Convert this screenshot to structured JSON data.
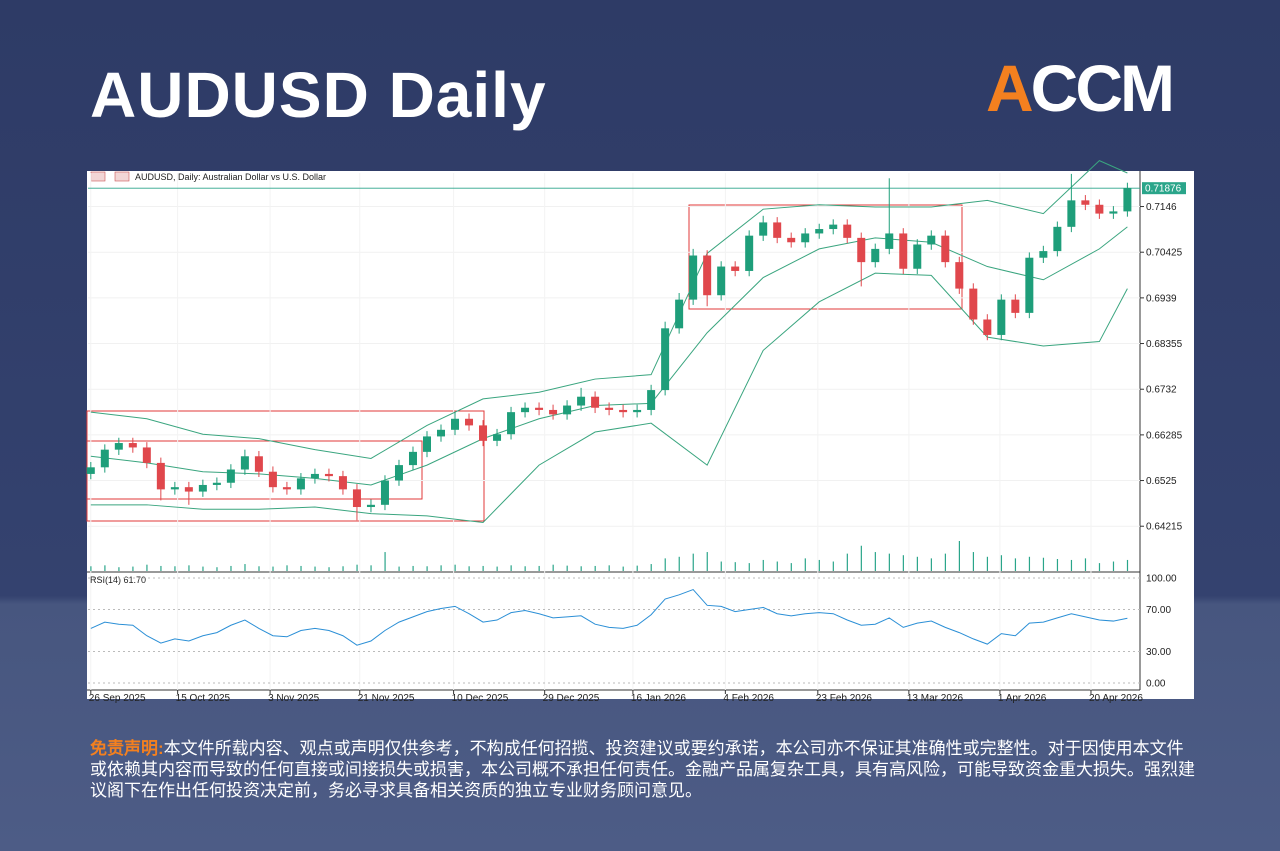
{
  "header": {
    "title": "AUDUSD Daily",
    "logo": "ACCM"
  },
  "chart_data": {
    "type": "candlestick",
    "caption": "AUDUSD, Daily: Australian Dollar vs U.S. Dollar",
    "up_color": "#1e9e7a",
    "down_color": "#e0474c",
    "xlim": [
      -0.2,
      74.9
    ],
    "xticks": [
      {
        "value": 0,
        "label": "26 Sep 2025"
      },
      {
        "value": 6.2,
        "label": "15 Oct 2025"
      },
      {
        "value": 12.8,
        "label": "3 Nov 2025"
      },
      {
        "value": 19.2,
        "label": "21 Nov 2025"
      },
      {
        "value": 25.9,
        "label": "10 Dec 2025"
      },
      {
        "value": 32.4,
        "label": "29 Dec 2025"
      },
      {
        "value": 38.7,
        "label": "16 Jan 2026"
      },
      {
        "value": 45.3,
        "label": "4 Feb 2026"
      },
      {
        "value": 51.9,
        "label": "23 Feb 2026"
      },
      {
        "value": 58.4,
        "label": "13 Mar 2026"
      },
      {
        "value": 64.9,
        "label": "1 Apr 2026"
      },
      {
        "value": 71.4,
        "label": "20 Apr 2026"
      }
    ],
    "ylim": [
      0.632,
      0.7222
    ],
    "yticks": [
      0.64215,
      0.6525,
      0.66285,
      0.6732,
      0.68355,
      0.6939,
      0.70425,
      0.7146
    ],
    "grid": true,
    "last_price": 0.71876,
    "last_price_color": "#2aa58a",
    "candles": {
      "open": [
        0.654,
        0.6555,
        0.6595,
        0.661,
        0.66,
        0.6565,
        0.6505,
        0.651,
        0.65,
        0.6515,
        0.652,
        0.655,
        0.658,
        0.6545,
        0.651,
        0.6505,
        0.653,
        0.654,
        0.6535,
        0.6505,
        0.6465,
        0.647,
        0.6525,
        0.656,
        0.659,
        0.6625,
        0.664,
        0.6665,
        0.665,
        0.6615,
        0.663,
        0.668,
        0.669,
        0.6685,
        0.6675,
        0.6695,
        0.6715,
        0.669,
        0.6685,
        0.668,
        0.6685,
        0.673,
        0.687,
        0.6935,
        0.7035,
        0.6945,
        0.701,
        0.7,
        0.708,
        0.711,
        0.7075,
        0.7065,
        0.7085,
        0.7095,
        0.7105,
        0.7075,
        0.702,
        0.705,
        0.7085,
        0.7005,
        0.706,
        0.708,
        0.702,
        0.696,
        0.689,
        0.6855,
        0.6935,
        0.6905,
        0.703,
        0.7045,
        0.71,
        0.716,
        0.715,
        0.713,
        0.7135
      ],
      "high": [
        0.6567,
        0.6607,
        0.6622,
        0.6622,
        0.6612,
        0.6577,
        0.6522,
        0.6522,
        0.6527,
        0.6532,
        0.6562,
        0.6595,
        0.6592,
        0.6557,
        0.6522,
        0.6542,
        0.6552,
        0.6552,
        0.6547,
        0.6517,
        0.6482,
        0.6537,
        0.6572,
        0.6602,
        0.6637,
        0.6652,
        0.668,
        0.6677,
        0.6662,
        0.6642,
        0.6692,
        0.6702,
        0.6702,
        0.6697,
        0.6707,
        0.6735,
        0.6727,
        0.6702,
        0.6697,
        0.6697,
        0.6742,
        0.6885,
        0.695,
        0.705,
        0.7047,
        0.7022,
        0.7022,
        0.7092,
        0.7125,
        0.7122,
        0.7087,
        0.7097,
        0.7107,
        0.7117,
        0.7117,
        0.7087,
        0.7062,
        0.721,
        0.7097,
        0.7072,
        0.7092,
        0.7092,
        0.7032,
        0.6972,
        0.6902,
        0.6947,
        0.6947,
        0.7042,
        0.7057,
        0.7112,
        0.722,
        0.7172,
        0.7162,
        0.7147,
        0.72
      ],
      "low": [
        0.6528,
        0.6543,
        0.6583,
        0.6588,
        0.6553,
        0.648,
        0.6493,
        0.647,
        0.6488,
        0.6503,
        0.6508,
        0.6538,
        0.6533,
        0.6498,
        0.6493,
        0.6493,
        0.6518,
        0.6523,
        0.6493,
        0.6435,
        0.6453,
        0.6458,
        0.6513,
        0.6548,
        0.6578,
        0.6613,
        0.6628,
        0.6638,
        0.6603,
        0.6603,
        0.6618,
        0.6668,
        0.6673,
        0.6663,
        0.6663,
        0.6683,
        0.6678,
        0.6673,
        0.6668,
        0.6668,
        0.6673,
        0.6718,
        0.6858,
        0.6923,
        0.692,
        0.6933,
        0.6988,
        0.6988,
        0.7068,
        0.7063,
        0.7053,
        0.7053,
        0.7073,
        0.7083,
        0.7063,
        0.6965,
        0.7008,
        0.7038,
        0.6993,
        0.6993,
        0.7048,
        0.7008,
        0.6948,
        0.6878,
        0.6843,
        0.6843,
        0.6893,
        0.6893,
        0.7018,
        0.7033,
        0.7088,
        0.7138,
        0.7118,
        0.7118,
        0.7123
      ],
      "close": [
        0.6555,
        0.6595,
        0.661,
        0.66,
        0.6565,
        0.6505,
        0.651,
        0.65,
        0.6515,
        0.652,
        0.655,
        0.658,
        0.6545,
        0.651,
        0.6505,
        0.653,
        0.654,
        0.6535,
        0.6505,
        0.6465,
        0.647,
        0.6525,
        0.656,
        0.659,
        0.6625,
        0.664,
        0.6665,
        0.665,
        0.6615,
        0.663,
        0.668,
        0.669,
        0.6685,
        0.6675,
        0.6695,
        0.6715,
        0.669,
        0.6685,
        0.668,
        0.6685,
        0.673,
        0.687,
        0.6935,
        0.7035,
        0.6945,
        0.701,
        0.7,
        0.708,
        0.711,
        0.7075,
        0.7065,
        0.7085,
        0.7095,
        0.7105,
        0.7075,
        0.702,
        0.705,
        0.7085,
        0.7005,
        0.706,
        0.708,
        0.702,
        0.696,
        0.689,
        0.6855,
        0.6935,
        0.6905,
        0.703,
        0.7045,
        0.71,
        0.716,
        0.715,
        0.713,
        0.7135,
        0.7188
      ]
    },
    "bands": {
      "color": "#3aa57f",
      "x": [
        0,
        4,
        8,
        12,
        16,
        20,
        24,
        28,
        32,
        36,
        40,
        44,
        48,
        52,
        56,
        60,
        64,
        68,
        72,
        74
      ],
      "upper": [
        0.668,
        0.6665,
        0.663,
        0.662,
        0.6595,
        0.6575,
        0.665,
        0.671,
        0.6725,
        0.6755,
        0.6765,
        0.704,
        0.714,
        0.715,
        0.7145,
        0.7145,
        0.716,
        0.713,
        0.725,
        0.7222
      ],
      "middle": [
        0.658,
        0.6565,
        0.6545,
        0.654,
        0.653,
        0.6515,
        0.656,
        0.662,
        0.6665,
        0.6695,
        0.67,
        0.686,
        0.6985,
        0.705,
        0.7075,
        0.7065,
        0.701,
        0.698,
        0.705,
        0.71
      ],
      "lower": [
        0.647,
        0.647,
        0.646,
        0.646,
        0.6465,
        0.645,
        0.6445,
        0.643,
        0.656,
        0.6635,
        0.6655,
        0.656,
        0.682,
        0.693,
        0.6995,
        0.699,
        0.685,
        0.683,
        0.684,
        0.696
      ]
    },
    "volume": [
      15,
      18,
      12,
      14,
      20,
      16,
      15,
      18,
      14,
      12,
      16,
      22,
      15,
      14,
      18,
      16,
      14,
      12,
      15,
      20,
      18,
      60,
      14,
      16,
      15,
      18,
      20,
      15,
      16,
      14,
      18,
      15,
      16,
      20,
      17,
      15,
      16,
      18,
      14,
      17,
      22,
      40,
      45,
      55,
      60,
      30,
      28,
      25,
      35,
      30,
      25,
      40,
      35,
      30,
      55,
      80,
      60,
      55,
      50,
      45,
      40,
      55,
      95,
      60,
      45,
      50,
      40,
      45,
      42,
      38,
      35,
      40,
      25,
      30,
      35
    ],
    "volume_color": "#2aa58a",
    "rsi": {
      "label": "RSI(14) 61.70",
      "color": "#2b8fd6",
      "ylim": [
        -6.7,
        104.8
      ],
      "yticks": [
        {
          "value": 100,
          "label": "100.00"
        },
        {
          "value": 70,
          "label": "70.00"
        },
        {
          "value": 30,
          "label": "30.00"
        },
        {
          "value": 0,
          "label": "0.00"
        }
      ],
      "values": [
        52,
        58,
        56,
        55,
        45,
        38,
        42,
        40,
        45,
        48,
        55,
        60,
        52,
        45,
        44,
        50,
        52,
        50,
        45,
        36,
        40,
        50,
        58,
        63,
        68,
        71,
        73,
        66,
        58,
        60,
        67,
        69,
        66,
        62,
        63,
        64,
        56,
        53,
        52,
        55,
        65,
        80,
        84,
        89,
        74,
        73,
        68,
        70,
        72,
        66,
        64,
        66,
        67,
        66,
        60,
        55,
        56,
        62,
        53,
        57,
        59,
        53,
        48,
        42,
        37,
        47,
        45,
        57,
        58,
        62,
        66,
        63,
        60,
        59,
        61.7
      ]
    }
  },
  "disclaimer": {
    "label": "免责声明:",
    "text": "本文件所载内容、观点或声明仅供参考，不构成任何招揽、投资建议或要约承诺，本公司亦不保证其准确性或完整性。对于因使用本文件或依赖其内容而导致的任何直接或间接损失或损害，本公司概不承担任何责任。金融产品属复杂工具，具有高风险，可能导致资金重大损失。强烈建议阁下在作出任何投资决定前，务必寻求具备相关资质的独立专业财务顾问意见。"
  }
}
